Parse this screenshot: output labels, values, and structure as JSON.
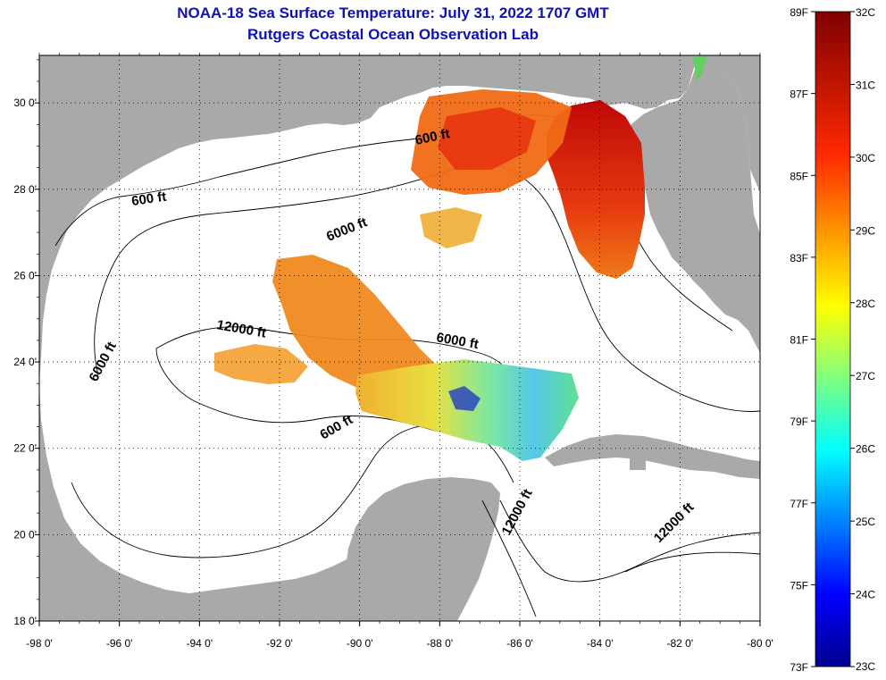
{
  "title": {
    "line1": "NOAA-18 Sea Surface Temperature:  July 31, 2022 1707 GMT",
    "line2": "Rutgers Coastal Ocean Observation Lab"
  },
  "map": {
    "lat_labels": [
      "30 0'",
      "28 0'",
      "26 0'",
      "24 0'",
      "22 0'",
      "20 0'",
      "18 0'"
    ],
    "lat_values": [
      30,
      28,
      26,
      24,
      22,
      20,
      18
    ],
    "lon_labels": [
      "-98 0'",
      "-96 0'",
      "-94 0'",
      "-92 0'",
      "-90 0'",
      "-88 0'",
      "-86 0'",
      "-84 0'",
      "-82 0'",
      "-80 0'"
    ],
    "lon_values": [
      -98,
      -96,
      -94,
      -92,
      -90,
      -88,
      -86,
      -84,
      -82,
      -80
    ],
    "lon_range": [
      -98,
      -80
    ],
    "lat_range": [
      18,
      31.1
    ],
    "contour_labels": [
      "600 ft",
      "600 ft",
      "6000 ft",
      "12000 ft",
      "6000 ft",
      "6000 ft",
      "600 ft",
      "12000 ft",
      "12000 ft"
    ]
  },
  "colorbar": {
    "fahrenheit_labels": [
      "89F",
      "87F",
      "85F",
      "83F",
      "81F",
      "79F",
      "77F",
      "75F",
      "73F"
    ],
    "celsius_labels": [
      "32C",
      "31C",
      "30C",
      "29C",
      "28C",
      "27C",
      "26C",
      "25C",
      "24C",
      "23C"
    ],
    "f_range": [
      73,
      89
    ],
    "c_range": [
      23,
      32
    ]
  },
  "colors": {
    "land": "#a9a9a9",
    "ocean": "#ffffff",
    "title": "#1010b8"
  }
}
